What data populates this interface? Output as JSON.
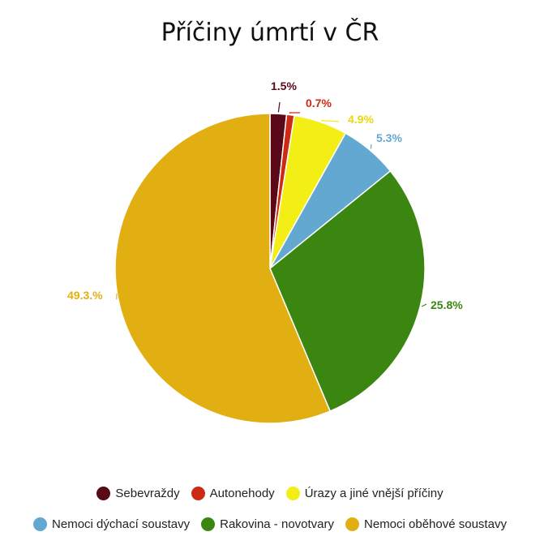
{
  "chart_data": {
    "type": "pie",
    "title": "Příčiny úmrtí v ČR",
    "slices": [
      {
        "label": "Sebevraždy",
        "value": 1.5,
        "value_label": "1.5%",
        "color": "#5b0818"
      },
      {
        "label": "Autonehody",
        "value": 0.7,
        "value_label": "0.7%",
        "color": "#cc2a14"
      },
      {
        "label": "Úrazy a jiné vnější příčiny",
        "value": 4.9,
        "value_label": "4.9%",
        "color": "#f2ee16"
      },
      {
        "label": "Nemoci dýchací soustavy",
        "value": 5.3,
        "value_label": "5.3%",
        "color": "#62a8d0"
      },
      {
        "label": "Rakovina - novotvary",
        "value": 25.8,
        "value_label": "25.8%",
        "color": "#3a8610"
      },
      {
        "label": "Nemoci oběhové soustavy",
        "value": 49.3,
        "value_label": "49.3.%",
        "color": "#e2af12"
      }
    ],
    "legend": "bottom"
  }
}
